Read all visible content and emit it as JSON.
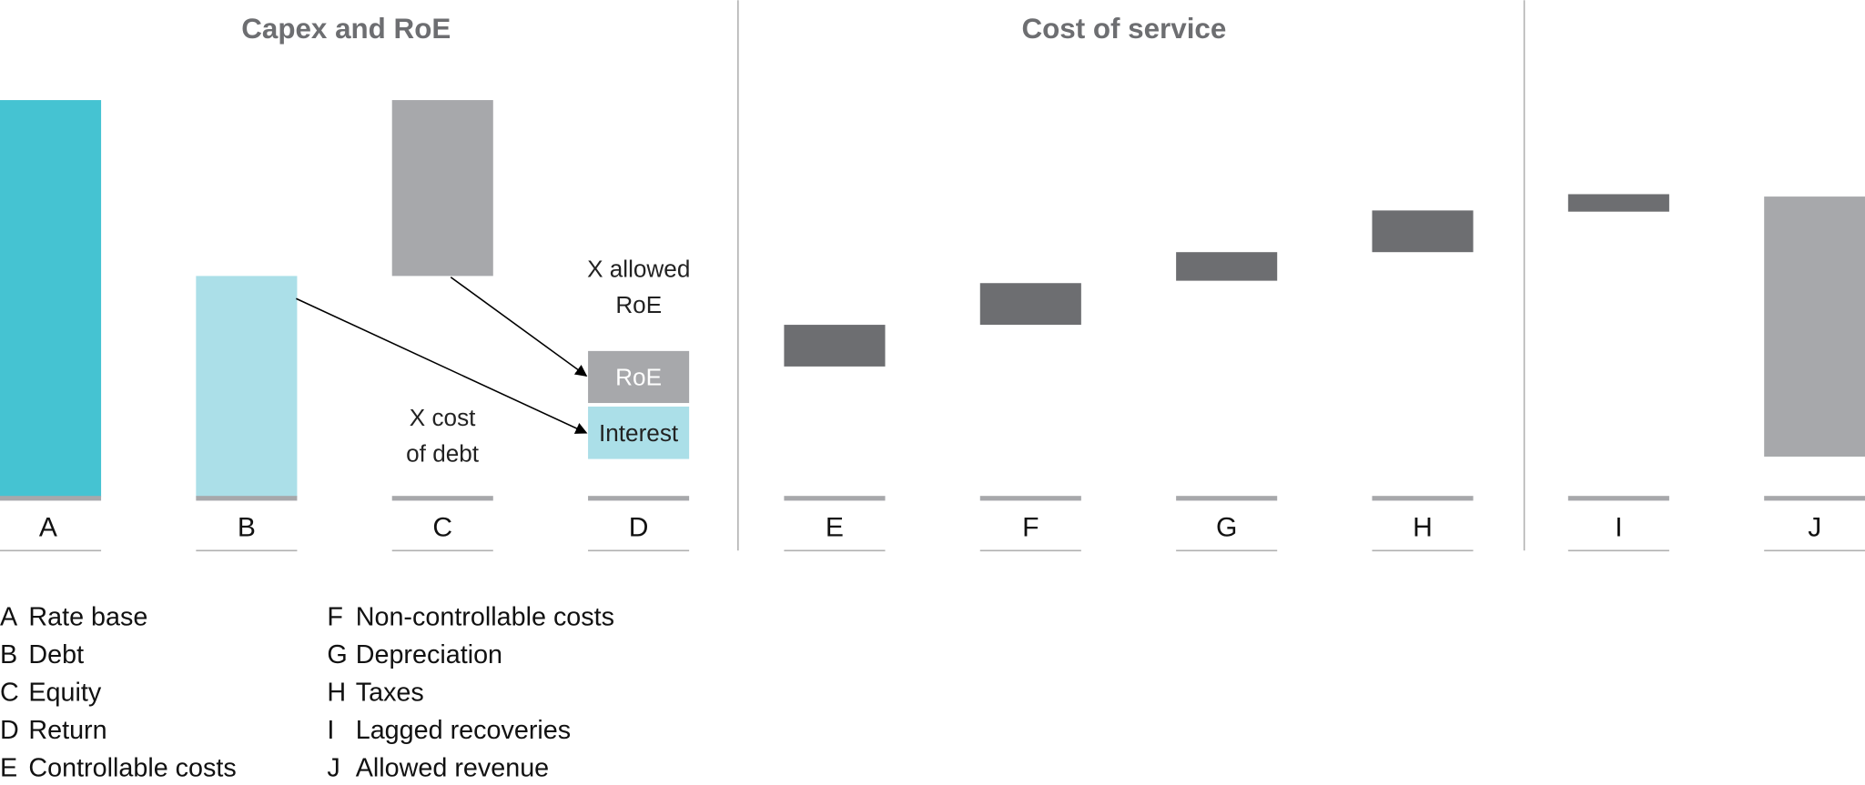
{
  "chart_data": {
    "type": "waterfall",
    "sections": [
      {
        "title": "Capex and RoE",
        "categories": [
          "A",
          "B",
          "C",
          "D"
        ]
      },
      {
        "title": "Cost of service",
        "categories": [
          "E",
          "F",
          "G",
          "H"
        ]
      },
      {
        "title": "",
        "categories": [
          "I",
          "J"
        ]
      }
    ],
    "bars": [
      {
        "category": "A",
        "start": 0,
        "end": 100,
        "color": "#45c3d2"
      },
      {
        "category": "B",
        "start": 0,
        "end": 55.7,
        "color": "#abdfe8"
      },
      {
        "category": "C",
        "start": 55.7,
        "end": 100,
        "color": "#a7a8ab"
      },
      {
        "category": "D",
        "start": 23.7,
        "end": 36.8,
        "color": "#a7a8ab",
        "label": "RoE"
      },
      {
        "category": "D",
        "start": 9.6,
        "end": 22.8,
        "color": "#abdfe8",
        "label": "Interest"
      },
      {
        "category": "E",
        "start": 32.9,
        "end": 43.4,
        "color": "#6d6e71"
      },
      {
        "category": "F",
        "start": 43.4,
        "end": 53.9,
        "color": "#6d6e71"
      },
      {
        "category": "G",
        "start": 54.5,
        "end": 61.7,
        "color": "#6d6e71"
      },
      {
        "category": "H",
        "start": 61.7,
        "end": 72.2,
        "color": "#6d6e71"
      },
      {
        "category": "I",
        "start": 71.9,
        "end": 76.3,
        "color": "#6d6e71"
      },
      {
        "category": "J",
        "start": 10.2,
        "end": 75.7,
        "color": "#a7a8ab"
      }
    ],
    "annotations": {
      "allowed_roe": [
        "X allowed",
        "RoE"
      ],
      "cost_of_debt": [
        "X cost",
        "of debt"
      ]
    },
    "legend": [
      {
        "key": "A",
        "text": "Rate base"
      },
      {
        "key": "B",
        "text": "Debt"
      },
      {
        "key": "C",
        "text": "Equity"
      },
      {
        "key": "D",
        "text": "Return"
      },
      {
        "key": "E",
        "text": "Controllable costs"
      },
      {
        "key": "F",
        "text": "Non-controllable costs"
      },
      {
        "key": "G",
        "text": "Depreciation"
      },
      {
        "key": "H",
        "text": "Taxes"
      },
      {
        "key": "I",
        "text": "Lagged recoveries"
      },
      {
        "key": "J",
        "text": "Allowed revenue"
      }
    ]
  }
}
